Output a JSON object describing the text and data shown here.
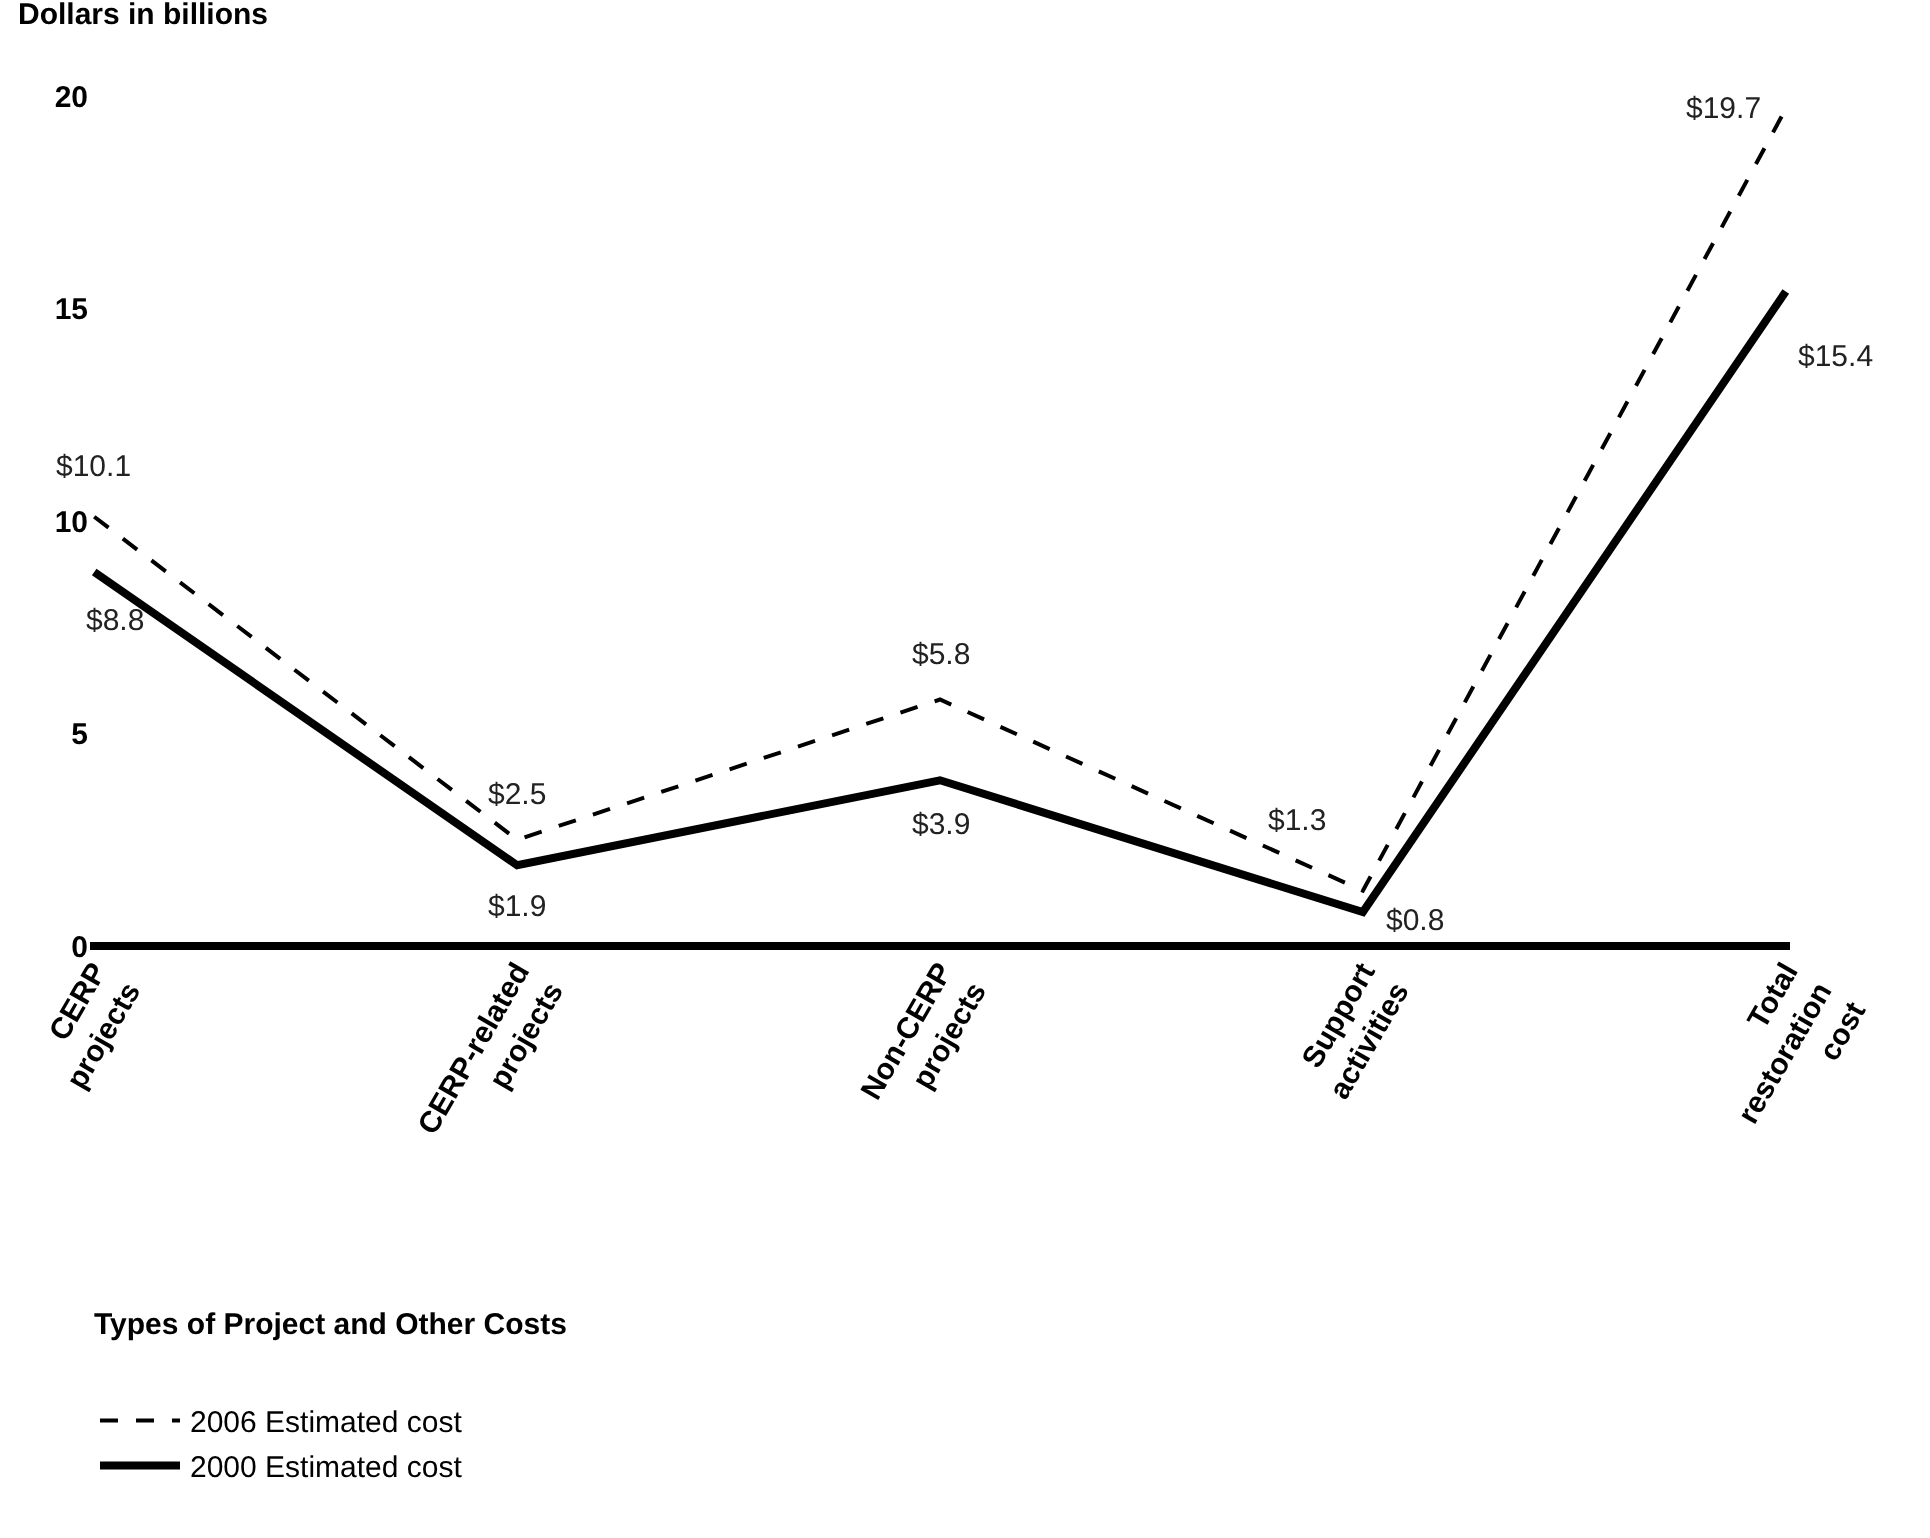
{
  "chart_data": {
    "type": "line",
    "ylabel": "Dollars in billions",
    "annotations": [
      "Types of Project and Other Costs"
    ],
    "categories": [
      "CERP projects",
      "CERP-related projects",
      "Non-CERP projects",
      "Support activities",
      "Total restoration cost"
    ],
    "series": [
      {
        "name": "2006 Estimated cost",
        "color": "#000000",
        "line_style": "dashed",
        "values": [
          10.1,
          2.5,
          5.8,
          1.3,
          19.7
        ],
        "value_labels": [
          "$10.1",
          "$2.5",
          "$5.8",
          "$1.3",
          "$19.7"
        ]
      },
      {
        "name": "2000 Estimated cost",
        "color": "#000000",
        "line_style": "solid",
        "values": [
          8.8,
          1.9,
          3.9,
          0.8,
          15.4
        ],
        "value_labels": [
          "$8.8",
          "$1.9",
          "$3.9",
          "$0.8",
          "$15.4"
        ]
      }
    ],
    "ylim": [
      0,
      20
    ],
    "yticks": [
      0,
      5,
      10,
      15,
      20
    ],
    "legend": "bottom left",
    "marker": "none"
  }
}
